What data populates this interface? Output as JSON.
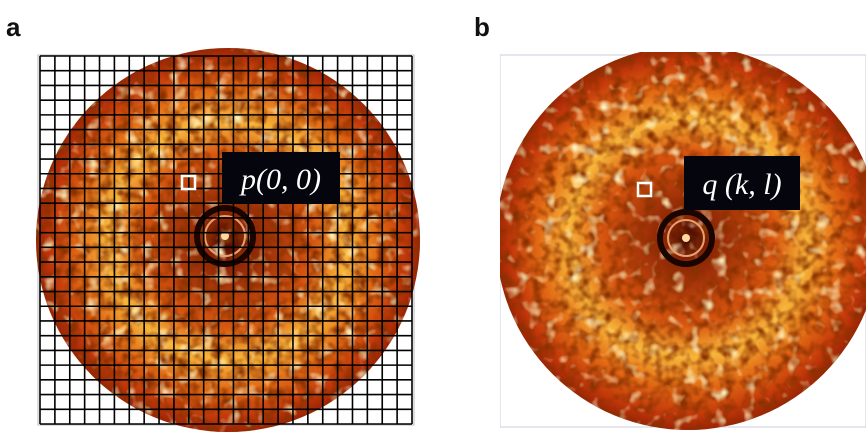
{
  "panels": [
    {
      "label": "a",
      "annotation": "p(0, 0)"
    },
    {
      "label": "b",
      "annotation": "q (k, l)"
    }
  ]
}
